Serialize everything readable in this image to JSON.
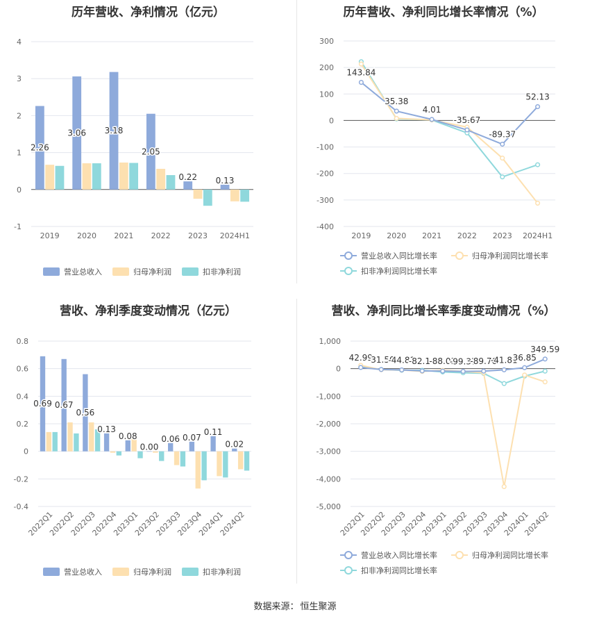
{
  "source_label": "数据来源：",
  "source_name": "恒生聚源",
  "chart_data": [
    {
      "id": "annual_bars",
      "type": "bar",
      "title": "历年营收、净利情况（亿元）",
      "categories": [
        "2019",
        "2020",
        "2021",
        "2022",
        "2023",
        "2024H1"
      ],
      "series": [
        {
          "name": "营业总收入",
          "color": "#8eaadb",
          "values": [
            2.26,
            3.06,
            3.18,
            2.05,
            0.22,
            0.13
          ]
        },
        {
          "name": "归母净利润",
          "color": "#fde0b0",
          "values": [
            0.67,
            0.71,
            0.73,
            0.56,
            -0.25,
            -0.32
          ]
        },
        {
          "name": "扣非净利润",
          "color": "#8fd8dc",
          "values": [
            0.64,
            0.71,
            0.72,
            0.39,
            -0.44,
            -0.33
          ]
        }
      ],
      "data_labels": [
        "2.26",
        "3.06",
        "3.18",
        "2.05",
        "0.22",
        "0.13"
      ],
      "ylim": [
        -1,
        4
      ],
      "yticks": [
        "-1",
        "0",
        "1",
        "2",
        "3",
        "4"
      ],
      "legend_position": "bottom"
    },
    {
      "id": "annual_growth",
      "type": "line",
      "title": "历年营收、净利同比增长率情况（%）",
      "categories": [
        "2019",
        "2020",
        "2021",
        "2022",
        "2023",
        "2024H1"
      ],
      "series": [
        {
          "name": "营业总收入同比增长率",
          "color": "#8eaadb",
          "values": [
            143.84,
            35.38,
            4.01,
            -35.67,
            -89.37,
            52.13
          ]
        },
        {
          "name": "归母净利润同比增长率",
          "color": "#fde0b0",
          "values": [
            213,
            8,
            2,
            -25,
            -142,
            -312
          ]
        },
        {
          "name": "扣非净利润同比增长率",
          "color": "#8fd8dc",
          "values": [
            222,
            6,
            2,
            -47,
            -213,
            -167
          ]
        }
      ],
      "data_labels": [
        "143.84",
        "35.38",
        "4.01",
        "-35.67",
        "-89.37",
        "52.13"
      ],
      "ylim": [
        -400,
        300
      ],
      "yticks": [
        "-400",
        "-300",
        "-200",
        "-100",
        "0",
        "100",
        "200",
        "300"
      ],
      "legend_position": "bottom"
    },
    {
      "id": "quarterly_bars",
      "type": "bar",
      "title": "营收、净利季度变动情况（亿元）",
      "categories": [
        "2022Q1",
        "2022Q2",
        "2022Q3",
        "2022Q4",
        "2023Q1",
        "2023Q2",
        "2023Q3",
        "2023Q4",
        "2024Q1",
        "2024Q2"
      ],
      "series": [
        {
          "name": "营业总收入",
          "color": "#8eaadb",
          "values": [
            0.69,
            0.67,
            0.56,
            0.13,
            0.08,
            0.0,
            0.06,
            0.07,
            0.11,
            0.02
          ]
        },
        {
          "name": "归母净利润",
          "color": "#fde0b0",
          "values": [
            0.14,
            0.21,
            0.21,
            -0.01,
            0.11,
            -0.01,
            -0.1,
            -0.27,
            -0.18,
            -0.13
          ]
        },
        {
          "name": "扣非净利润",
          "color": "#8fd8dc",
          "values": [
            0.14,
            0.13,
            0.16,
            -0.03,
            -0.05,
            -0.07,
            -0.11,
            -0.21,
            -0.19,
            -0.14
          ]
        }
      ],
      "data_labels": [
        "0.69",
        "0.67",
        "0.56",
        "0.13",
        "0.08",
        "0.00",
        "0.06",
        "0.07",
        "0.11",
        "0.02"
      ],
      "ylim": [
        -0.4,
        0.8
      ],
      "yticks": [
        "-0.4",
        "-0.2",
        "0",
        "0.2",
        "0.4",
        "0.6",
        "0.8"
      ],
      "legend_position": "bottom"
    },
    {
      "id": "quarterly_growth",
      "type": "line",
      "title": "营收、净利同比增长率季度变动情况（%）",
      "categories": [
        "2022Q1",
        "2022Q2",
        "2022Q3",
        "2022Q4",
        "2023Q1",
        "2023Q2",
        "2023Q3",
        "2023Q4",
        "2024Q1",
        "2024Q2"
      ],
      "series": [
        {
          "name": "营业总收入同比增长率",
          "color": "#8eaadb",
          "values": [
            42.99,
            -31.5,
            -44.81,
            -82.14,
            -88.03,
            -99.37,
            -89.76,
            -41.81,
            36.85,
            349.59
          ]
        },
        {
          "name": "归母净利润同比增长率",
          "color": "#fde0b0",
          "values": [
            120,
            -40,
            -50,
            -100,
            -60,
            -100,
            -150,
            -4280,
            -230,
            -480
          ]
        },
        {
          "name": "扣非净利润同比增长率",
          "color": "#8fd8dc",
          "values": [
            60,
            -30,
            -60,
            -60,
            -120,
            -150,
            -170,
            -540,
            -270,
            -90
          ]
        }
      ],
      "data_labels": [
        "42.99",
        "-31.50",
        "-44.81",
        "-82.14",
        "-88.03",
        "-99.37",
        "-89.76",
        "-41.81",
        "36.85",
        "349.59"
      ],
      "ylim": [
        -5000,
        1000
      ],
      "yticks": [
        "-5,000",
        "-4,000",
        "-3,000",
        "-2,000",
        "-1,000",
        "0",
        "1,000"
      ],
      "legend_position": "bottom"
    }
  ]
}
